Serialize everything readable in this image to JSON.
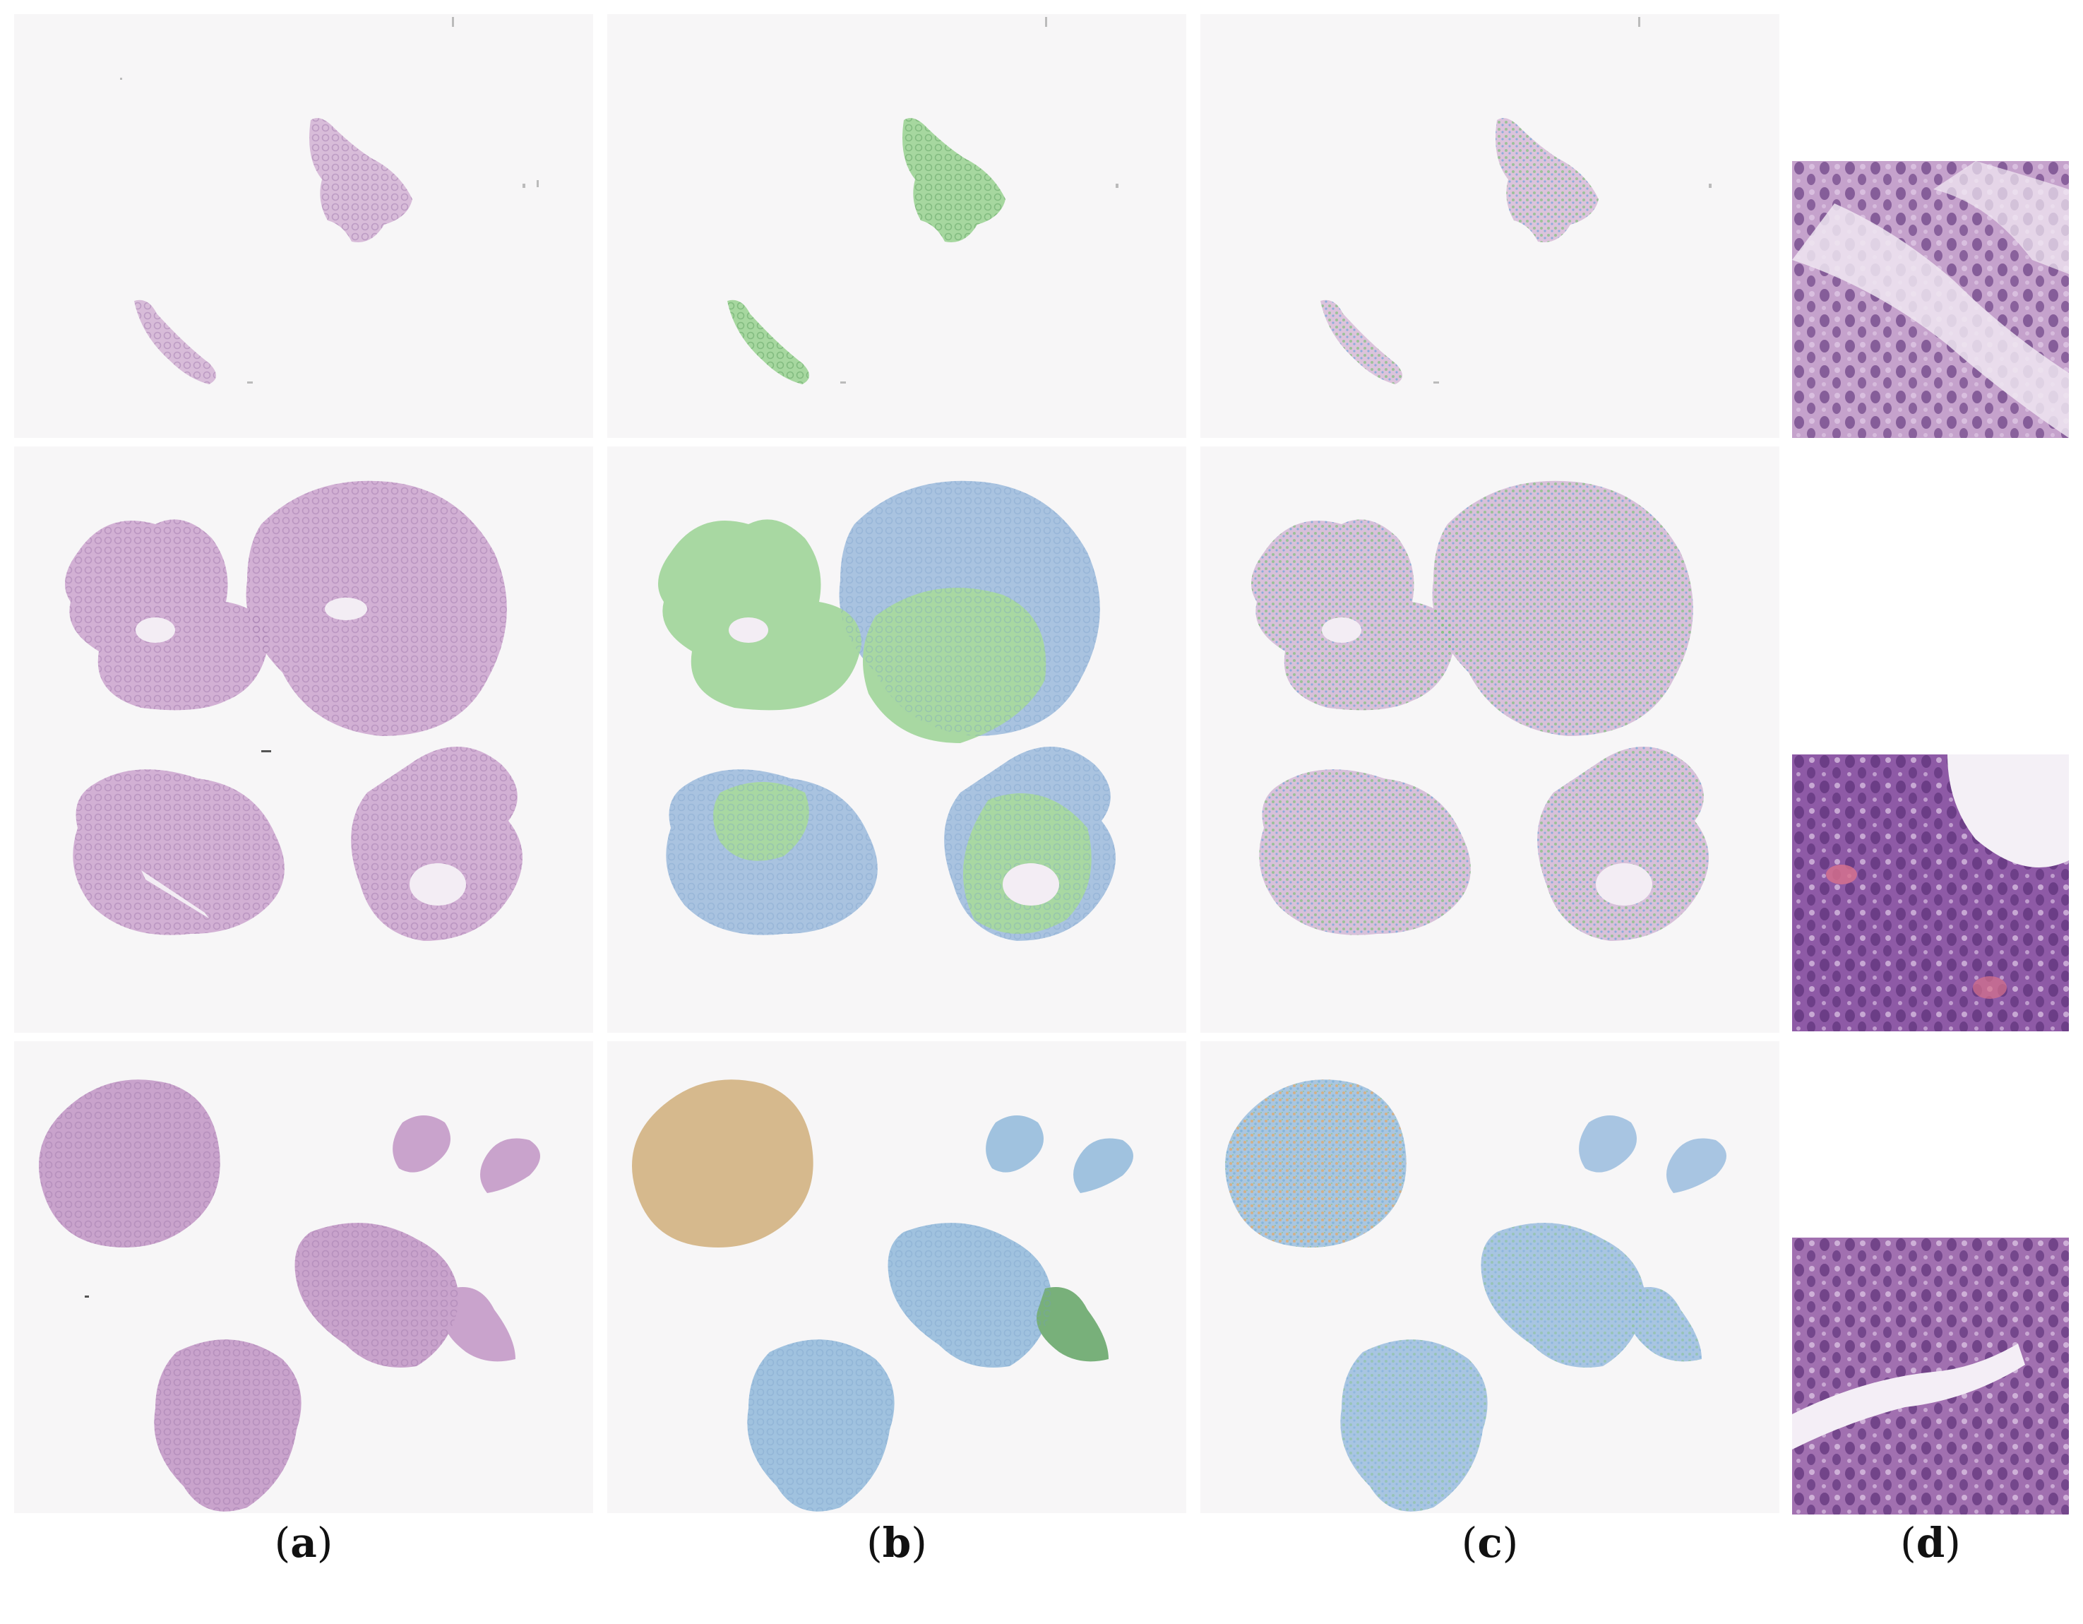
{
  "labels": {
    "a": {
      "open": "(",
      "letter": "a",
      "close": ")"
    },
    "b": {
      "open": "(",
      "letter": "b",
      "close": ")"
    },
    "c": {
      "open": "(",
      "letter": "c",
      "close": ")"
    },
    "d": {
      "open": "(",
      "letter": "d",
      "close": ")"
    }
  },
  "colors": {
    "slide_background": "#f6f5f6",
    "tissue_he": "#c9a3cc",
    "tissue_he_dark": "#b48ab9",
    "overlay_green": "#9fd39a",
    "overlay_blue": "#9ebbdb",
    "overlay_tan": "#d7bc8e",
    "overlay_dark_green": "#6fae73",
    "patch_light": "#b892c1",
    "patch_dark": "#6d3f86"
  },
  "rows": [
    {
      "panels": [
        "row1-a",
        "row1-b",
        "row1-c"
      ],
      "patch": "patch-1"
    },
    {
      "panels": [
        "row2-a",
        "row2-b",
        "row2-c"
      ],
      "patch": "patch-2"
    },
    {
      "panels": [
        "row3-a",
        "row3-b",
        "row3-c"
      ],
      "patch": "patch-3"
    }
  ]
}
